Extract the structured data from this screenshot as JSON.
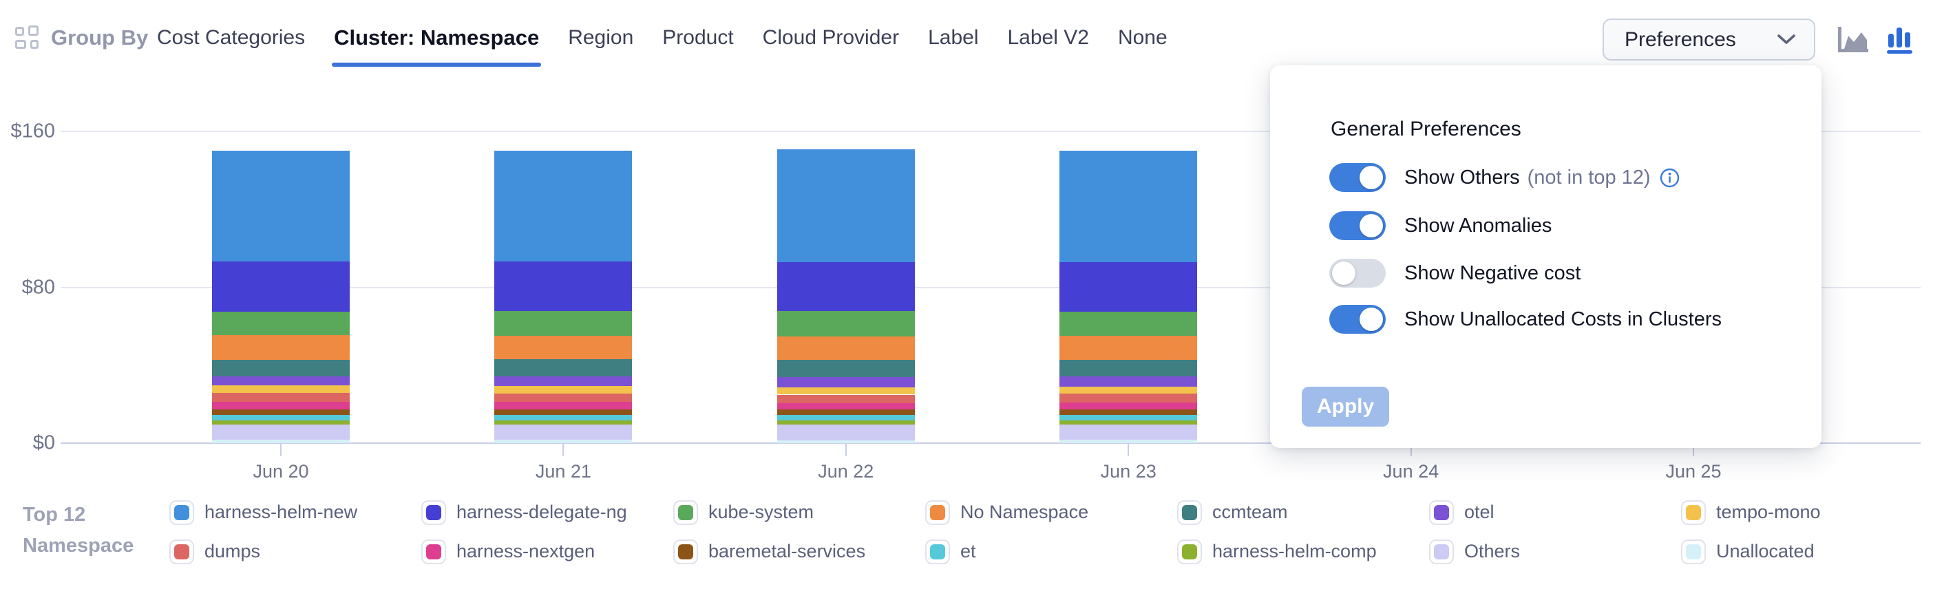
{
  "toolbar": {
    "group_by_label": "Group By",
    "tabs": [
      {
        "label": "Cost Categories",
        "active": false
      },
      {
        "label": "Cluster: Namespace",
        "active": true
      },
      {
        "label": "Region",
        "active": false
      },
      {
        "label": "Product",
        "active": false
      },
      {
        "label": "Cloud Provider",
        "active": false
      },
      {
        "label": "Label",
        "active": false
      },
      {
        "label": "Label V2",
        "active": false
      },
      {
        "label": "None",
        "active": false
      }
    ],
    "preferences_button_label": "Preferences",
    "chart_type_icons": [
      {
        "name": "area-chart-icon",
        "active": false
      },
      {
        "name": "bar-chart-icon",
        "active": true
      }
    ]
  },
  "preferences_panel": {
    "heading": "General Preferences",
    "toggles": [
      {
        "label": "Show Others",
        "suffix": "(not in top 12)",
        "has_info_icon": true,
        "state": "on"
      },
      {
        "label": "Show Anomalies",
        "state": "on"
      },
      {
        "label": "Show Negative cost",
        "state": "off"
      },
      {
        "label": "Show Unallocated Costs in Clusters",
        "state": "on"
      }
    ],
    "apply_button_label": "Apply",
    "apply_button_enabled": false
  },
  "legend": {
    "title_lines": [
      "Top 12",
      "Namespace"
    ],
    "items": [
      {
        "label": "harness-helm-new",
        "color": "#4290DB"
      },
      {
        "label": "dumps",
        "color": "#DB6662"
      },
      {
        "label": "harness-delegate-ng",
        "color": "#453FD3"
      },
      {
        "label": "harness-nextgen",
        "color": "#DD3E90"
      },
      {
        "label": "kube-system",
        "color": "#5AA85A"
      },
      {
        "label": "baremetal-services",
        "color": "#8D5417"
      },
      {
        "label": "No Namespace",
        "color": "#EE8A42"
      },
      {
        "label": "et",
        "color": "#55C9D9"
      },
      {
        "label": "ccmteam",
        "color": "#3F7E81"
      },
      {
        "label": "harness-helm-comp",
        "color": "#8CB02F"
      },
      {
        "label": "otel",
        "color": "#7A52D3"
      },
      {
        "label": "Others",
        "color": "#CDCAF4"
      },
      {
        "label": "tempo-mono",
        "color": "#F2C24D"
      },
      {
        "label": "Unallocated",
        "color": "#D5F0F8"
      }
    ]
  },
  "chart_data": {
    "type": "bar",
    "subtype": "stacked-vertical",
    "title": "",
    "xlabel": "",
    "ylabel": "",
    "currency_unit": "$",
    "x_labels": [
      "Jun 20",
      "Jun 21",
      "Jun 22",
      "Jun 23",
      "Jun 24",
      "Jun 25"
    ],
    "bars_present_for": [
      "Jun 20",
      "Jun 21",
      "Jun 22",
      "Jun 23"
    ],
    "approx_total_per_bar": 150,
    "y_axis": {
      "ticks": [
        {
          "label": "$0",
          "value": 0
        },
        {
          "label": "$80",
          "value": 80
        },
        {
          "label": "$160",
          "value": 160
        }
      ],
      "min": 0,
      "max": 160,
      "grid": true
    },
    "series_bottom_to_top": [
      {
        "name": "Unallocated",
        "color": "#D5F0F8",
        "values": [
          1.7,
          1.6,
          1.4,
          1.6
        ]
      },
      {
        "name": "Others",
        "color": "#CDCAF4",
        "values": [
          8.0,
          8.0,
          8.0,
          8.0
        ]
      },
      {
        "name": "harness-helm-comp",
        "color": "#8CB02F",
        "values": [
          2.1,
          2.1,
          2.1,
          2.1
        ]
      },
      {
        "name": "et",
        "color": "#55C9D9",
        "values": [
          2.7,
          2.8,
          3.0,
          2.8
        ]
      },
      {
        "name": "baremetal-services",
        "color": "#8D5417",
        "values": [
          2.7,
          2.8,
          2.9,
          2.8
        ]
      },
      {
        "name": "harness-nextgen",
        "color": "#DD3E90",
        "values": [
          4.1,
          3.8,
          3.0,
          3.6
        ]
      },
      {
        "name": "dumps",
        "color": "#DB6662",
        "values": [
          4.4,
          4.4,
          4.5,
          4.4
        ]
      },
      {
        "name": "tempo-mono",
        "color": "#F2C24D",
        "values": [
          3.8,
          3.8,
          3.8,
          3.8
        ]
      },
      {
        "name": "otel",
        "color": "#7A52D3",
        "values": [
          4.7,
          4.9,
          5.3,
          5.0
        ]
      },
      {
        "name": "ccmteam",
        "color": "#3F7E81",
        "values": [
          8.7,
          8.8,
          8.9,
          8.8
        ]
      },
      {
        "name": "No Namespace",
        "color": "#EE8A42",
        "values": [
          12.5,
          12.2,
          11.9,
          12.1
        ]
      },
      {
        "name": "kube-system",
        "color": "#5AA85A",
        "values": [
          12.2,
          12.5,
          13.0,
          12.6
        ]
      },
      {
        "name": "harness-delegate-ng",
        "color": "#453FD3",
        "values": [
          25.8,
          25.5,
          25.1,
          25.4
        ]
      },
      {
        "name": "harness-helm-new",
        "color": "#4290DB",
        "values": [
          56.6,
          57.0,
          57.9,
          57.2
        ]
      }
    ],
    "legend_position": "bottom"
  },
  "colors": {
    "accent_blue": "#3B72D8",
    "active_tab_underline": "#3B72D8",
    "toggle_on": "#3D7EDC",
    "toggle_off": "#D9DDE6",
    "apply_disabled": "#9FBCEA",
    "gridline": "#E4E7F1",
    "axis_line": "#C9CEE9",
    "muted_text": "#6F7489",
    "legend_text": "#5A5F7A",
    "info_icon_blue": "#3C7BD9"
  }
}
